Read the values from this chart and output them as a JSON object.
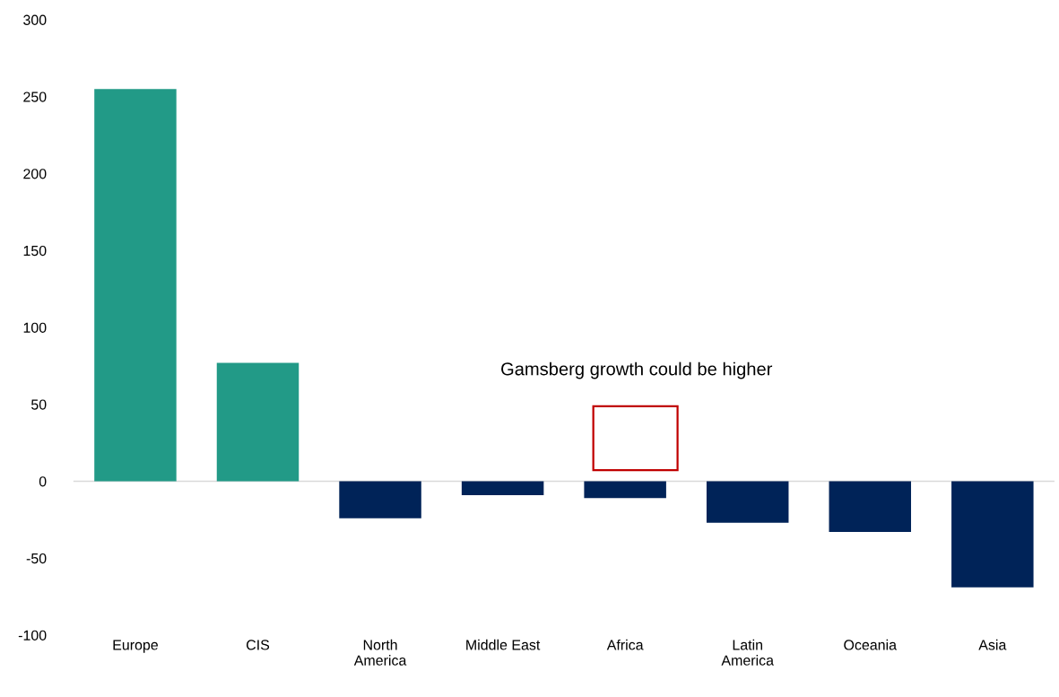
{
  "chart_data": {
    "type": "bar",
    "categories": [
      "Europe",
      "CIS",
      "North\nAmerica",
      "Middle East",
      "Africa",
      "Latin\nAmerica",
      "Oceania",
      "Asia"
    ],
    "values": [
      255,
      77,
      -24,
      -9,
      -11,
      -27,
      -33,
      -69
    ],
    "colors": [
      "#229a87",
      "#229a87",
      "#002358",
      "#002358",
      "#002358",
      "#002358",
      "#002358",
      "#002358"
    ],
    "ylim": [
      -100,
      300
    ],
    "yticks": [
      -100,
      -50,
      0,
      50,
      100,
      150,
      200,
      250,
      300
    ],
    "annotations": [
      "Gamsberg growth could be higher"
    ]
  }
}
